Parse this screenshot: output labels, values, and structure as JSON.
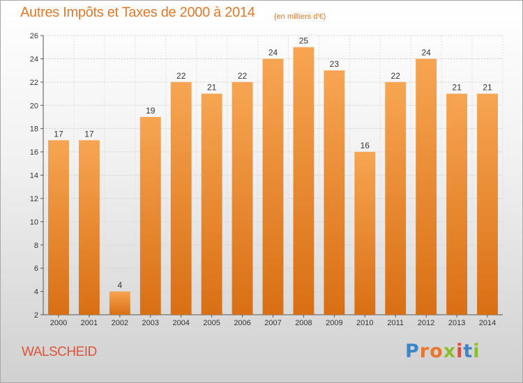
{
  "chart_data": {
    "type": "bar",
    "title": "Autres Impôts et Taxes de 2000 à 2014",
    "unit": "(en milliers d'€)",
    "categories": [
      "2000",
      "2001",
      "2002",
      "2003",
      "2004",
      "2005",
      "2006",
      "2007",
      "2008",
      "2009",
      "2010",
      "2011",
      "2012",
      "2013",
      "2014"
    ],
    "values": [
      17,
      17,
      4,
      19,
      22,
      21,
      22,
      24,
      25,
      23,
      16,
      22,
      24,
      21,
      21
    ],
    "ylim": [
      2,
      26
    ],
    "yticks": [
      2,
      4,
      6,
      8,
      10,
      12,
      14,
      16,
      18,
      20,
      22,
      24,
      26
    ],
    "grid": true,
    "bar_color": "#f08a2e",
    "xlabel": "",
    "ylabel": ""
  },
  "footer": {
    "place": "WALSCHEID",
    "logo_letters": [
      "P",
      "r",
      "o",
      "x",
      "i",
      "t",
      "i"
    ],
    "logo_colors": [
      "#3a86c8",
      "#e9762b",
      "#e9762b",
      "#8cbd2e",
      "#e04a3a",
      "#3a86c8",
      "#8cbd2e"
    ]
  }
}
